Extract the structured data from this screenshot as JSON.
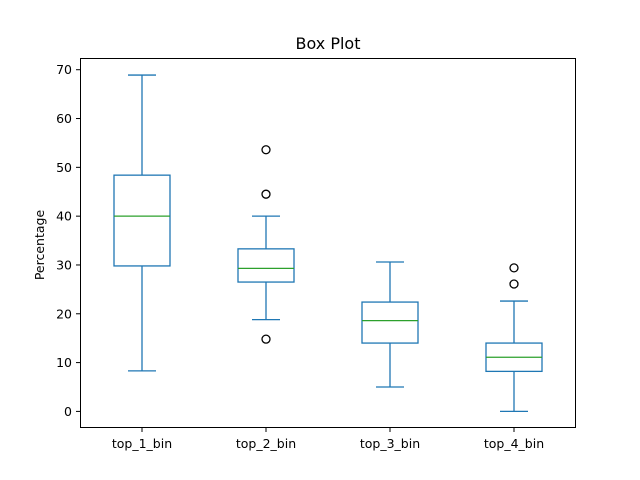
{
  "chart_data": {
    "type": "box",
    "title": "Box Plot",
    "xlabel": "",
    "ylabel": "Percentage",
    "ylim": [
      -3.4,
      72.4
    ],
    "yticks": [
      0,
      10,
      20,
      30,
      40,
      50,
      60,
      70
    ],
    "grid": false,
    "legend": "none",
    "colors": {
      "box": "#1f77b4",
      "median": "#2ca02c",
      "flier": "#000000"
    },
    "categories": [
      "top_1_bin",
      "top_2_bin",
      "top_3_bin",
      "top_4_bin"
    ],
    "boxes": [
      {
        "name": "top_1_bin",
        "whisker_low": 8.3,
        "q1": 29.8,
        "median": 40.0,
        "q3": 48.4,
        "whisker_high": 68.9,
        "outliers": []
      },
      {
        "name": "top_2_bin",
        "whisker_low": 18.8,
        "q1": 26.5,
        "median": 29.3,
        "q3": 33.3,
        "whisker_high": 40.0,
        "outliers": [
          14.8,
          44.5,
          53.6
        ]
      },
      {
        "name": "top_3_bin",
        "whisker_low": 5.0,
        "q1": 14.0,
        "median": 18.6,
        "q3": 22.4,
        "whisker_high": 30.6,
        "outliers": []
      },
      {
        "name": "top_4_bin",
        "whisker_low": 0.0,
        "q1": 8.2,
        "median": 11.1,
        "q3": 14.0,
        "whisker_high": 22.6,
        "outliers": [
          26.1,
          29.4
        ]
      }
    ]
  }
}
